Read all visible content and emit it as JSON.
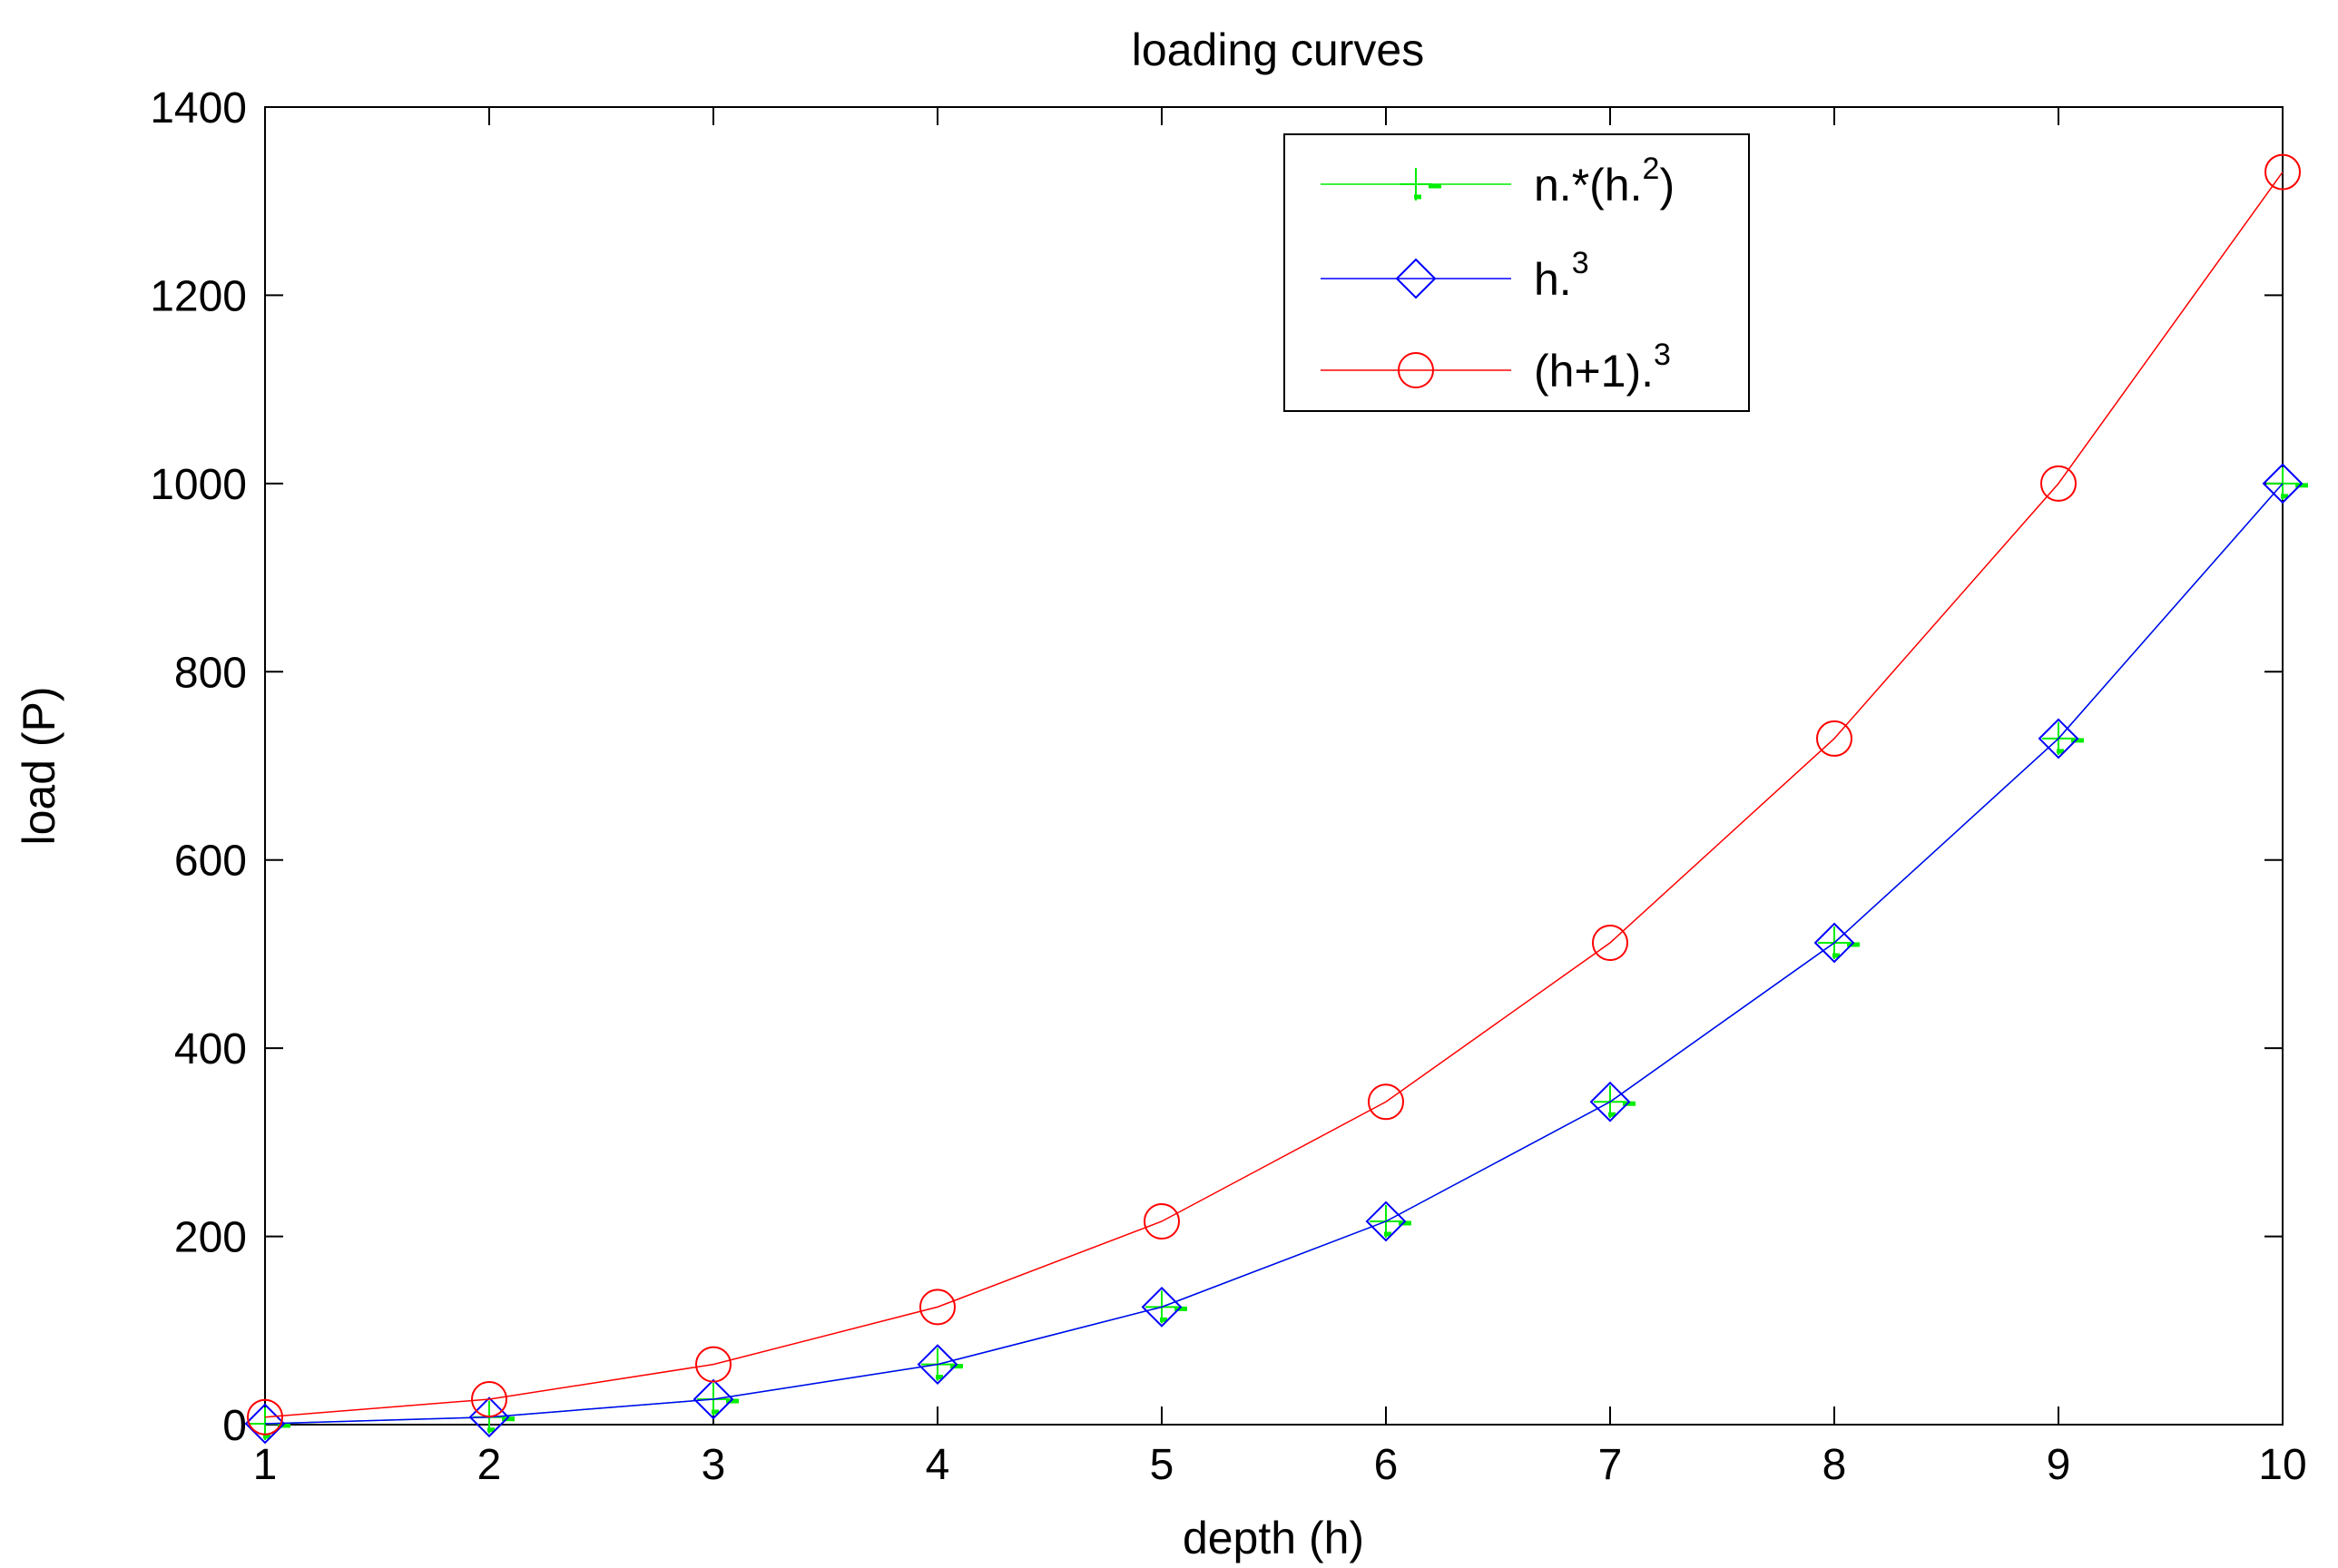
{
  "chart_data": {
    "type": "line",
    "title": "loading curves",
    "xlabel": "depth (h)",
    "ylabel": "load (P)",
    "xlim": [
      1,
      10
    ],
    "ylim": [
      0,
      1400
    ],
    "xticks": [
      1,
      2,
      3,
      4,
      5,
      6,
      7,
      8,
      9,
      10
    ],
    "yticks": [
      0,
      200,
      400,
      600,
      800,
      1000,
      1200,
      1400
    ],
    "xtick_labels": [
      "1",
      "2",
      "3",
      "4",
      "5",
      "6",
      "7",
      "8",
      "9",
      "10"
    ],
    "ytick_labels": [
      "0",
      "200",
      "400",
      "600",
      "800",
      "1000",
      "1200",
      "1400"
    ],
    "grid": false,
    "legend_position": "top-right",
    "x": [
      1,
      2,
      3,
      4,
      5,
      6,
      7,
      8,
      9,
      10
    ],
    "series": [
      {
        "name_base": "n.*(h.",
        "name_sup": "2",
        "name_tail": ")",
        "marker": "plus",
        "color": "#00ee00",
        "values": [
          1,
          8,
          27,
          64,
          125,
          216,
          343,
          512,
          729,
          1000
        ]
      },
      {
        "name_base": "h.",
        "name_sup": "3",
        "name_tail": "",
        "marker": "diamond",
        "color": "#0000ff",
        "values": [
          1,
          8,
          27,
          64,
          125,
          216,
          343,
          512,
          729,
          1000
        ]
      },
      {
        "name_base": "(h+1).",
        "name_sup": "3",
        "name_tail": "",
        "marker": "circle",
        "color": "#ff0000",
        "values": [
          8,
          27,
          64,
          125,
          216,
          343,
          512,
          729,
          1000,
          1331
        ]
      }
    ]
  }
}
